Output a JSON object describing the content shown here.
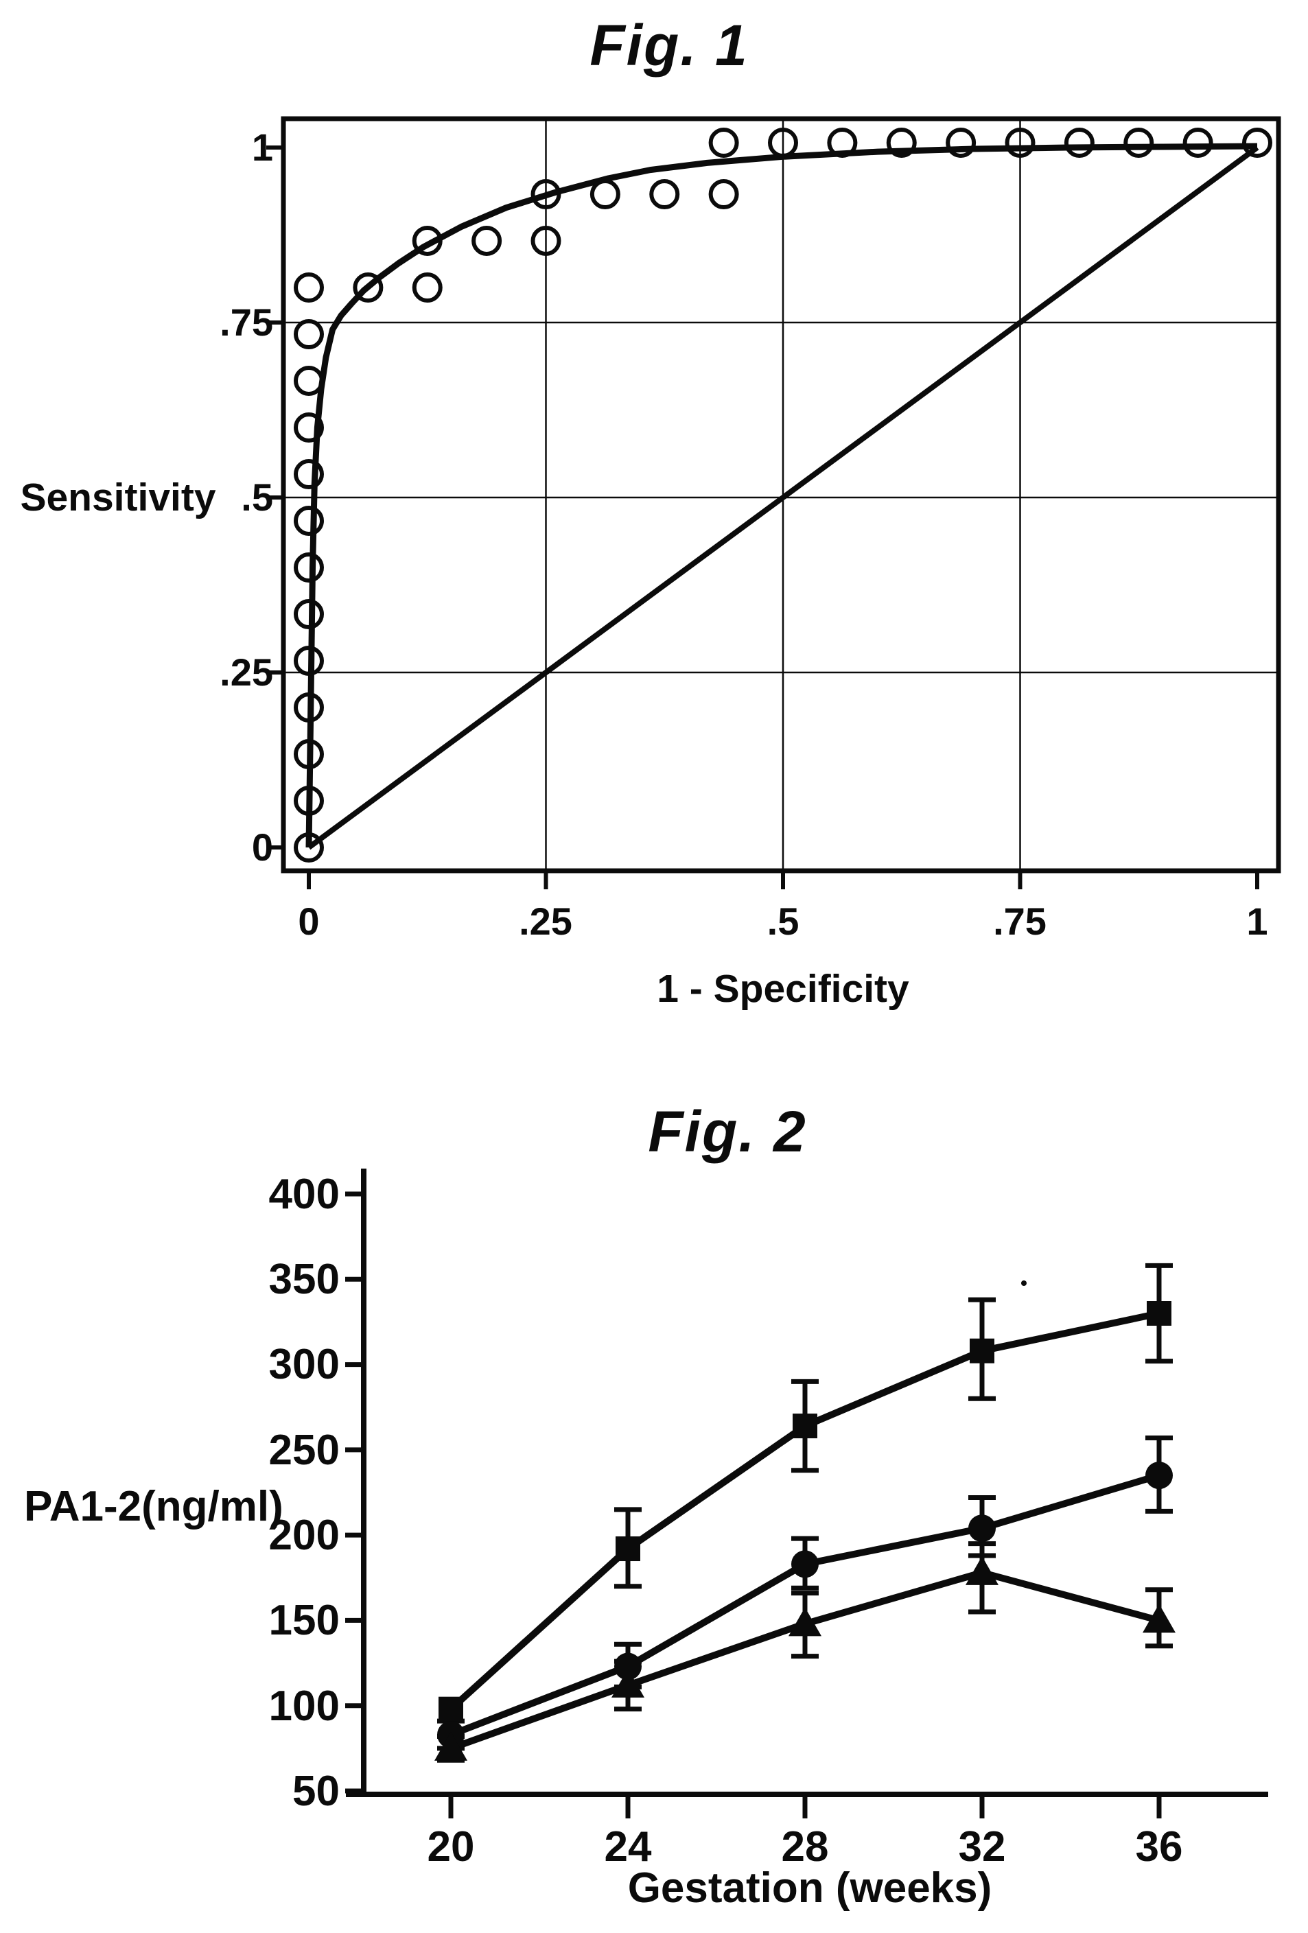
{
  "page": {
    "background": "#ffffff",
    "ink": "#0b0b0b"
  },
  "figure1": {
    "title": "Fig. 1",
    "y_axis": {
      "label": "Sensitivity",
      "ticks": [
        "1",
        ".75",
        ".5",
        ".25",
        "0"
      ]
    },
    "x_axis": {
      "label": "1 - Specificity",
      "ticks": [
        "0",
        ".25",
        ".5",
        ".75",
        "1"
      ]
    }
  },
  "figure2": {
    "title": "Fig. 2",
    "y_axis": {
      "label": "PA1-2(ng/ml)",
      "ticks": [
        "400",
        "350",
        "300",
        "250",
        "200",
        "150",
        "100",
        "50"
      ]
    },
    "x_axis": {
      "label": "Gestation (weeks)",
      "ticks": [
        "20",
        "24",
        "28",
        "32",
        "36"
      ]
    }
  },
  "chart_data": [
    {
      "type": "scatter",
      "title": "Fig. 1",
      "xlabel": "1 - Specificity",
      "ylabel": "Sensitivity",
      "xlim": [
        0,
        1
      ],
      "ylim": [
        0,
        1
      ],
      "x_ticks": [
        0,
        0.25,
        0.5,
        0.75,
        1
      ],
      "y_ticks": [
        0,
        0.25,
        0.5,
        0.75,
        1
      ],
      "grid": true,
      "legend": "none",
      "series": [
        {
          "name": "roc-observed-points",
          "marker": "open-circle",
          "points": [
            [
              0,
              0
            ],
            [
              0,
              0.0667
            ],
            [
              0,
              0.1333
            ],
            [
              0,
              0.2
            ],
            [
              0,
              0.2667
            ],
            [
              0,
              0.3333
            ],
            [
              0,
              0.4
            ],
            [
              0,
              0.4667
            ],
            [
              0,
              0.5333
            ],
            [
              0,
              0.6
            ],
            [
              0,
              0.6667
            ],
            [
              0,
              0.7333
            ],
            [
              0,
              0.8
            ],
            [
              0.0625,
              0.8
            ],
            [
              0.125,
              0.8
            ],
            [
              0.125,
              0.8667
            ],
            [
              0.1875,
              0.8667
            ],
            [
              0.25,
              0.8667
            ],
            [
              0.25,
              0.9333
            ],
            [
              0.3125,
              0.9333
            ],
            [
              0.375,
              0.9333
            ],
            [
              0.4375,
              0.9333
            ],
            [
              0.4375,
              1
            ],
            [
              0.5,
              1
            ],
            [
              0.5625,
              1
            ],
            [
              0.625,
              1
            ],
            [
              0.6875,
              1
            ],
            [
              0.75,
              1
            ],
            [
              0.8125,
              1
            ],
            [
              0.875,
              1
            ],
            [
              0.9375,
              1
            ],
            [
              1,
              1
            ]
          ]
        },
        {
          "name": "fitted-roc-curve",
          "type": "line",
          "points": [
            [
              0,
              0
            ],
            [
              0.002,
              0.2
            ],
            [
              0.004,
              0.4
            ],
            [
              0.006,
              0.52
            ],
            [
              0.009,
              0.6
            ],
            [
              0.013,
              0.655
            ],
            [
              0.018,
              0.7
            ],
            [
              0.025,
              0.74
            ],
            [
              0.034,
              0.76
            ],
            [
              0.045,
              0.777
            ],
            [
              0.058,
              0.796
            ],
            [
              0.075,
              0.815
            ],
            [
              0.095,
              0.835
            ],
            [
              0.121,
              0.858
            ],
            [
              0.161,
              0.887
            ],
            [
              0.208,
              0.914
            ],
            [
              0.26,
              0.936
            ],
            [
              0.316,
              0.956
            ],
            [
              0.36,
              0.968
            ],
            [
              0.42,
              0.978
            ],
            [
              0.5,
              0.987
            ],
            [
              0.6,
              0.994
            ],
            [
              0.7,
              0.998
            ],
            [
              0.8,
              1.0
            ],
            [
              0.9,
              1.001
            ],
            [
              1,
              1.002
            ]
          ]
        },
        {
          "name": "chance-diagonal",
          "type": "line",
          "points": [
            [
              0,
              0
            ],
            [
              1,
              1
            ]
          ]
        }
      ]
    },
    {
      "type": "line",
      "title": "Fig. 2",
      "xlabel": "Gestation (weeks)",
      "ylabel": "PA1-2(ng/ml)",
      "x": [
        20,
        24,
        28,
        32,
        36
      ],
      "xlim": [
        18,
        38
      ],
      "ylim": [
        50,
        400
      ],
      "y_ticks": [
        400,
        350,
        300,
        250,
        200,
        150,
        100,
        50
      ],
      "grid": false,
      "legend": "none",
      "error_bars": true,
      "series": [
        {
          "name": "upper-series-squares",
          "marker": "square",
          "values": [
            98,
            192,
            264,
            308,
            330
          ],
          "err_low": [
            null,
            170,
            238,
            280,
            302
          ],
          "err_high": [
            null,
            215,
            290,
            338,
            358
          ]
        },
        {
          "name": "middle-series-circles",
          "marker": "circle",
          "values": [
            83,
            123,
            183,
            204,
            235
          ],
          "err_low": [
            75,
            111,
            169,
            188,
            214
          ],
          "err_high": [
            91,
            136,
            198,
            222,
            257
          ]
        },
        {
          "name": "lower-series-triangles",
          "marker": "triangle",
          "values": [
            75,
            112,
            148,
            178,
            150
          ],
          "err_low": [
            68,
            98,
            129,
            155,
            135
          ],
          "err_high": [
            82,
            126,
            166,
            195,
            168
          ]
        }
      ]
    }
  ]
}
